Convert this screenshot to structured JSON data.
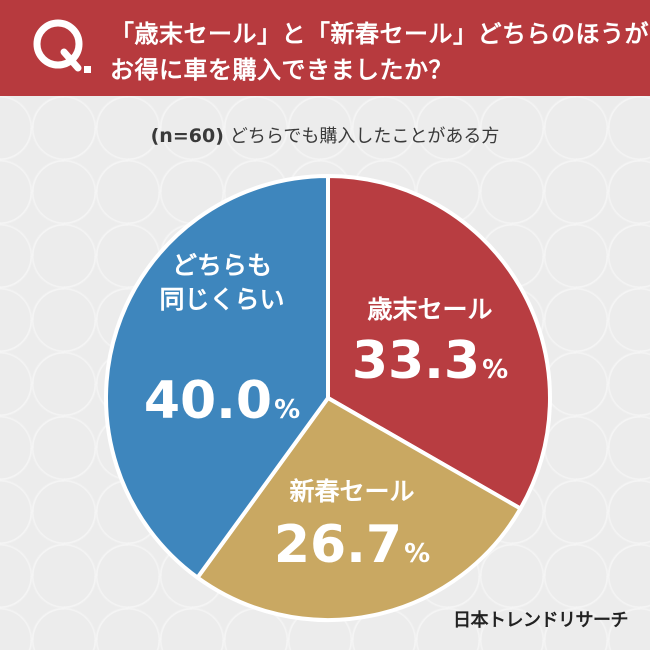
{
  "question": {
    "line1": "「歳末セール」と「新春セール」どちらのほうが",
    "line2": "お得に車を購入できましたか？"
  },
  "subtitle": {
    "sample": "(n=60)",
    "text": "どちらでも購入したことがある方"
  },
  "brand": "日本トレンドリサーチ",
  "colors": {
    "header": "#b73a3e",
    "year_end": "#b83d41",
    "new_year": "#c9a862",
    "either": "#3e86bd"
  },
  "chart_data": {
    "type": "pie",
    "title": "",
    "slices": [
      {
        "label_lines": [
          "歳末セール"
        ],
        "value": 33.3,
        "display": "33.3",
        "unit": "%",
        "color": "#b83d41"
      },
      {
        "label_lines": [
          "新春セール"
        ],
        "value": 26.7,
        "display": "26.7",
        "unit": "%",
        "color": "#c9a862"
      },
      {
        "label_lines": [
          "どちらも",
          "同じくらい"
        ],
        "value": 40.0,
        "display": "40.0",
        "unit": "%",
        "color": "#3e86bd"
      }
    ]
  }
}
